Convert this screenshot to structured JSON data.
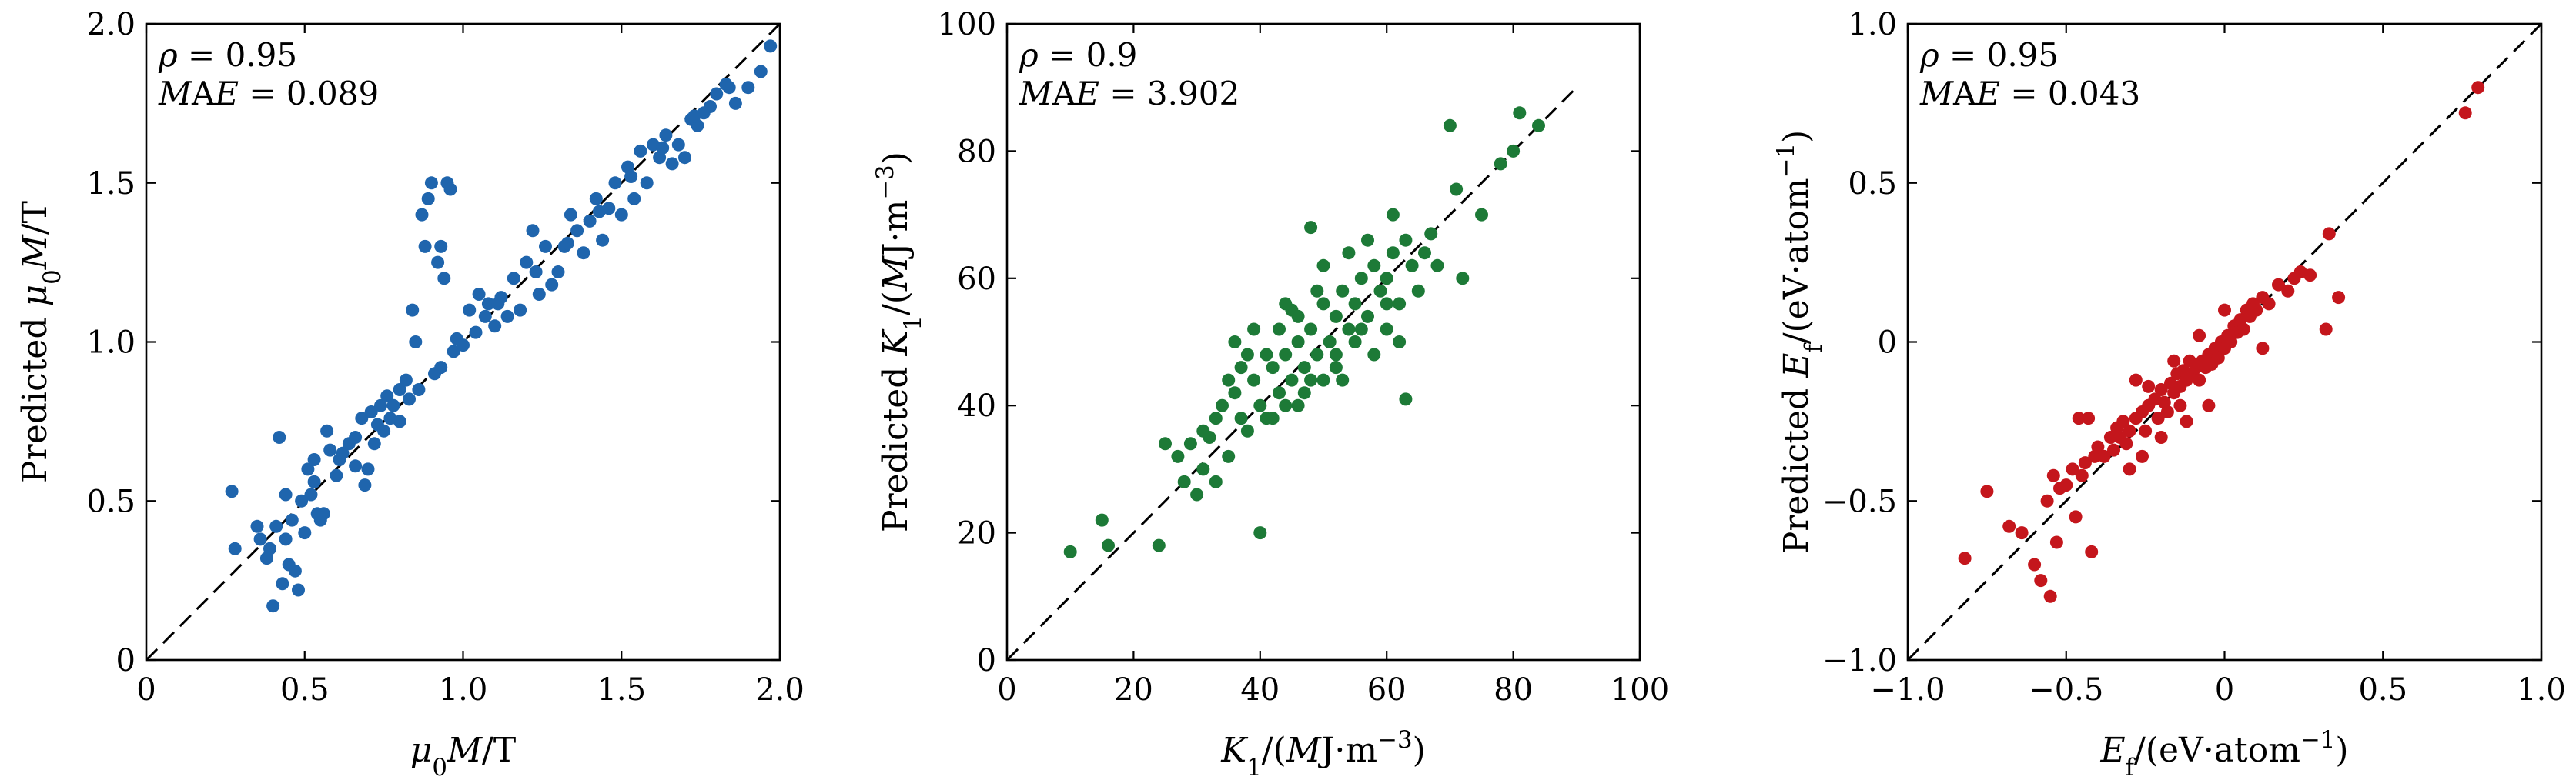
{
  "chart_data": [
    {
      "type": "scatter",
      "color": "#1f65ad",
      "xlim": [
        0,
        2.0
      ],
      "ylim": [
        0,
        2.0
      ],
      "xticks": [
        0,
        0.5,
        1.0,
        1.5,
        2.0
      ],
      "xtick_labels": [
        "0",
        "0.5",
        "1.0",
        "1.5",
        "2.0"
      ],
      "yticks": [
        0,
        0.5,
        1.0,
        1.5,
        2.0
      ],
      "ytick_labels": [
        "0",
        "0.5",
        "1.0",
        "1.5",
        "2.0"
      ],
      "xlabel": "μ₀M/T",
      "ylabel": "Predicted μ₀M/T",
      "stats": [
        "ρ = 0.95",
        "MAE = 0.089"
      ],
      "diagonal": [
        0,
        2.0
      ],
      "points": [
        [
          0.27,
          0.53
        ],
        [
          0.28,
          0.35
        ],
        [
          0.36,
          0.38
        ],
        [
          0.38,
          0.32
        ],
        [
          0.4,
          0.17
        ],
        [
          0.41,
          0.42
        ],
        [
          0.42,
          0.7
        ],
        [
          0.43,
          0.24
        ],
        [
          0.44,
          0.38
        ],
        [
          0.45,
          0.3
        ],
        [
          0.46,
          0.44
        ],
        [
          0.47,
          0.28
        ],
        [
          0.48,
          0.22
        ],
        [
          0.49,
          0.5
        ],
        [
          0.5,
          0.4
        ],
        [
          0.51,
          0.6
        ],
        [
          0.52,
          0.52
        ],
        [
          0.53,
          0.63
        ],
        [
          0.54,
          0.46
        ],
        [
          0.55,
          0.44
        ],
        [
          0.56,
          0.46
        ],
        [
          0.57,
          0.72
        ],
        [
          0.58,
          0.66
        ],
        [
          0.6,
          0.58
        ],
        [
          0.62,
          0.65
        ],
        [
          0.64,
          0.68
        ],
        [
          0.66,
          0.7
        ],
        [
          0.68,
          0.76
        ],
        [
          0.69,
          0.55
        ],
        [
          0.7,
          0.6
        ],
        [
          0.71,
          0.78
        ],
        [
          0.72,
          0.68
        ],
        [
          0.74,
          0.8
        ],
        [
          0.75,
          0.72
        ],
        [
          0.76,
          0.83
        ],
        [
          0.78,
          0.8
        ],
        [
          0.8,
          0.75
        ],
        [
          0.8,
          0.85
        ],
        [
          0.82,
          0.88
        ],
        [
          0.84,
          1.1
        ],
        [
          0.85,
          1.0
        ],
        [
          0.86,
          0.85
        ],
        [
          0.87,
          1.4
        ],
        [
          0.88,
          1.3
        ],
        [
          0.89,
          1.45
        ],
        [
          0.9,
          1.5
        ],
        [
          0.91,
          0.9
        ],
        [
          0.92,
          1.25
        ],
        [
          0.93,
          1.3
        ],
        [
          0.94,
          1.2
        ],
        [
          0.95,
          1.5
        ],
        [
          0.96,
          1.48
        ],
        [
          0.97,
          0.97
        ],
        [
          0.98,
          1.01
        ],
        [
          1.0,
          0.99
        ],
        [
          1.02,
          1.1
        ],
        [
          1.05,
          1.15
        ],
        [
          1.07,
          1.08
        ],
        [
          1.08,
          1.12
        ],
        [
          1.1,
          1.05
        ],
        [
          1.12,
          1.14
        ],
        [
          1.14,
          1.08
        ],
        [
          1.16,
          1.2
        ],
        [
          1.18,
          1.1
        ],
        [
          1.2,
          1.25
        ],
        [
          1.22,
          1.35
        ],
        [
          1.24,
          1.15
        ],
        [
          1.26,
          1.3
        ],
        [
          1.28,
          1.18
        ],
        [
          1.3,
          1.22
        ],
        [
          1.32,
          1.3
        ],
        [
          1.34,
          1.4
        ],
        [
          1.36,
          1.35
        ],
        [
          1.38,
          1.28
        ],
        [
          1.4,
          1.38
        ],
        [
          1.42,
          1.45
        ],
        [
          1.44,
          1.32
        ],
        [
          1.46,
          1.42
        ],
        [
          1.48,
          1.5
        ],
        [
          1.5,
          1.4
        ],
        [
          1.52,
          1.55
        ],
        [
          1.54,
          1.45
        ],
        [
          1.56,
          1.6
        ],
        [
          1.58,
          1.5
        ],
        [
          1.6,
          1.62
        ],
        [
          1.62,
          1.58
        ],
        [
          1.64,
          1.65
        ],
        [
          1.66,
          1.56
        ],
        [
          1.68,
          1.62
        ],
        [
          1.7,
          1.58
        ],
        [
          1.72,
          1.7
        ],
        [
          1.74,
          1.68
        ],
        [
          1.76,
          1.72
        ],
        [
          1.78,
          1.74
        ],
        [
          1.8,
          1.78
        ],
        [
          1.84,
          1.8
        ],
        [
          1.86,
          1.75
        ],
        [
          1.9,
          1.8
        ],
        [
          1.94,
          1.85
        ],
        [
          1.97,
          1.93
        ],
        [
          0.35,
          0.42
        ],
        [
          0.39,
          0.35
        ],
        [
          0.44,
          0.52
        ],
        [
          0.53,
          0.56
        ],
        [
          0.61,
          0.63
        ],
        [
          0.66,
          0.61
        ],
        [
          0.73,
          0.74
        ],
        [
          0.77,
          0.76
        ],
        [
          0.83,
          0.82
        ],
        [
          0.93,
          0.92
        ],
        [
          1.04,
          1.03
        ],
        [
          1.11,
          1.12
        ],
        [
          1.23,
          1.22
        ],
        [
          1.33,
          1.31
        ],
        [
          1.43,
          1.41
        ],
        [
          1.53,
          1.52
        ],
        [
          1.63,
          1.61
        ],
        [
          1.73,
          1.71
        ],
        [
          1.83,
          1.81
        ]
      ]
    },
    {
      "type": "scatter",
      "color": "#1d7a37",
      "xlim": [
        0,
        100
      ],
      "ylim": [
        0,
        100
      ],
      "xticks": [
        0,
        20,
        40,
        60,
        80,
        100
      ],
      "xtick_labels": [
        "0",
        "20",
        "40",
        "60",
        "80",
        "100"
      ],
      "yticks": [
        0,
        20,
        40,
        60,
        80,
        100
      ],
      "ytick_labels": [
        "0",
        "20",
        "40",
        "60",
        "80",
        "100"
      ],
      "xlabel": "K₁/(MJ·m⁻³)",
      "ylabel": "Predicted K₁/(MJ·m⁻³)",
      "stats": [
        "ρ = 0.9",
        "MAE = 3.902"
      ],
      "diagonal": [
        0,
        90
      ],
      "points": [
        [
          10,
          17
        ],
        [
          15,
          22
        ],
        [
          16,
          18
        ],
        [
          24,
          18
        ],
        [
          25,
          34
        ],
        [
          27,
          32
        ],
        [
          28,
          28
        ],
        [
          29,
          34
        ],
        [
          30,
          26
        ],
        [
          31,
          30
        ],
        [
          32,
          35
        ],
        [
          33,
          28
        ],
        [
          34,
          40
        ],
        [
          35,
          32
        ],
        [
          36,
          42
        ],
        [
          37,
          38
        ],
        [
          38,
          36
        ],
        [
          39,
          44
        ],
        [
          40,
          20
        ],
        [
          40,
          40
        ],
        [
          41,
          38
        ],
        [
          42,
          46
        ],
        [
          43,
          42
        ],
        [
          43,
          52
        ],
        [
          44,
          48
        ],
        [
          45,
          44
        ],
        [
          45,
          55
        ],
        [
          46,
          50
        ],
        [
          47,
          46
        ],
        [
          47,
          42
        ],
        [
          48,
          52
        ],
        [
          48,
          68
        ],
        [
          49,
          48
        ],
        [
          50,
          56
        ],
        [
          50,
          44
        ],
        [
          51,
          50
        ],
        [
          52,
          54
        ],
        [
          52,
          46
        ],
        [
          53,
          58
        ],
        [
          54,
          52
        ],
        [
          55,
          56
        ],
        [
          55,
          50
        ],
        [
          56,
          60
        ],
        [
          57,
          54
        ],
        [
          58,
          62
        ],
        [
          59,
          58
        ],
        [
          60,
          60
        ],
        [
          60,
          52
        ],
        [
          61,
          64
        ],
        [
          62,
          56
        ],
        [
          63,
          41
        ],
        [
          63,
          66
        ],
        [
          64,
          62
        ],
        [
          65,
          58
        ],
        [
          66,
          64
        ],
        [
          67,
          67
        ],
        [
          68,
          62
        ],
        [
          70,
          84
        ],
        [
          71,
          74
        ],
        [
          72,
          60
        ],
        [
          75,
          70
        ],
        [
          78,
          78
        ],
        [
          80,
          80
        ],
        [
          81,
          86
        ],
        [
          84,
          84
        ],
        [
          36,
          50
        ],
        [
          38,
          48
        ],
        [
          42,
          38
        ],
        [
          44,
          56
        ],
        [
          46,
          40
        ],
        [
          48,
          44
        ],
        [
          50,
          62
        ],
        [
          52,
          48
        ],
        [
          54,
          64
        ],
        [
          56,
          52
        ],
        [
          58,
          48
        ],
        [
          60,
          56
        ],
        [
          62,
          50
        ],
        [
          46,
          54
        ],
        [
          49,
          58
        ],
        [
          53,
          44
        ],
        [
          57,
          66
        ],
        [
          61,
          70
        ],
        [
          44,
          40
        ],
        [
          41,
          48
        ],
        [
          39,
          52
        ],
        [
          37,
          46
        ],
        [
          35,
          44
        ],
        [
          33,
          38
        ],
        [
          31,
          36
        ]
      ]
    },
    {
      "type": "scatter",
      "color": "#c4161c",
      "xlim": [
        -1.0,
        1.0
      ],
      "ylim": [
        -1.0,
        1.0
      ],
      "xticks": [
        -1.0,
        -0.5,
        0,
        0.5,
        1.0
      ],
      "xtick_labels": [
        "−1.0",
        "−0.5",
        "0",
        "0.5",
        "1.0"
      ],
      "yticks": [
        -1.0,
        -0.5,
        0,
        0.5,
        1.0
      ],
      "ytick_labels": [
        "−1.0",
        "−0.5",
        "0",
        "0.5",
        "1.0"
      ],
      "xlabel": "E_f/(eV·atom⁻¹)",
      "ylabel": "Predicted E_f/(eV·atom⁻¹)",
      "stats": [
        "ρ = 0.95",
        "MAE = 0.043"
      ],
      "diagonal": [
        -1.0,
        1.0
      ],
      "points": [
        [
          -0.82,
          -0.68
        ],
        [
          -0.75,
          -0.47
        ],
        [
          -0.68,
          -0.58
        ],
        [
          -0.64,
          -0.6
        ],
        [
          -0.6,
          -0.7
        ],
        [
          -0.58,
          -0.75
        ],
        [
          -0.56,
          -0.5
        ],
        [
          -0.55,
          -0.8
        ],
        [
          -0.54,
          -0.42
        ],
        [
          -0.53,
          -0.63
        ],
        [
          -0.52,
          -0.46
        ],
        [
          -0.5,
          -0.45
        ],
        [
          -0.48,
          -0.4
        ],
        [
          -0.47,
          -0.55
        ],
        [
          -0.46,
          -0.24
        ],
        [
          -0.45,
          -0.42
        ],
        [
          -0.44,
          -0.38
        ],
        [
          -0.43,
          -0.24
        ],
        [
          -0.42,
          -0.66
        ],
        [
          -0.41,
          -0.36
        ],
        [
          -0.4,
          -0.33
        ],
        [
          -0.38,
          -0.36
        ],
        [
          -0.36,
          -0.3
        ],
        [
          -0.35,
          -0.34
        ],
        [
          -0.34,
          -0.27
        ],
        [
          -0.33,
          -0.3
        ],
        [
          -0.32,
          -0.25
        ],
        [
          -0.31,
          -0.32
        ],
        [
          -0.3,
          -0.28
        ],
        [
          -0.28,
          -0.24
        ],
        [
          -0.26,
          -0.22
        ],
        [
          -0.25,
          -0.28
        ],
        [
          -0.24,
          -0.2
        ],
        [
          -0.22,
          -0.18
        ],
        [
          -0.21,
          -0.24
        ],
        [
          -0.2,
          -0.15
        ],
        [
          -0.19,
          -0.19
        ],
        [
          -0.18,
          -0.22
        ],
        [
          -0.17,
          -0.13
        ],
        [
          -0.16,
          -0.16
        ],
        [
          -0.15,
          -0.1
        ],
        [
          -0.14,
          -0.14
        ],
        [
          -0.13,
          -0.09
        ],
        [
          -0.12,
          -0.12
        ],
        [
          -0.11,
          -0.06
        ],
        [
          -0.1,
          -0.1
        ],
        [
          -0.09,
          -0.08
        ],
        [
          -0.08,
          -0.12
        ],
        [
          -0.07,
          -0.06
        ],
        [
          -0.06,
          -0.08
        ],
        [
          -0.05,
          -0.04
        ],
        [
          -0.04,
          -0.07
        ],
        [
          -0.03,
          -0.02
        ],
        [
          -0.02,
          -0.05
        ],
        [
          -0.01,
          0.0
        ],
        [
          0.0,
          -0.02
        ],
        [
          0.01,
          0.02
        ],
        [
          0.02,
          0.0
        ],
        [
          0.03,
          0.05
        ],
        [
          0.04,
          0.03
        ],
        [
          0.05,
          0.07
        ],
        [
          0.06,
          0.04
        ],
        [
          0.07,
          0.1
        ],
        [
          0.08,
          0.08
        ],
        [
          0.09,
          0.12
        ],
        [
          0.1,
          0.1
        ],
        [
          0.12,
          0.14
        ],
        [
          0.14,
          0.12
        ],
        [
          0.17,
          0.18
        ],
        [
          0.2,
          0.16
        ],
        [
          0.22,
          0.2
        ],
        [
          0.24,
          0.22
        ],
        [
          0.27,
          0.21
        ],
        [
          0.32,
          0.04
        ],
        [
          0.33,
          0.34
        ],
        [
          0.36,
          0.14
        ],
        [
          0.76,
          0.72
        ],
        [
          0.8,
          0.8
        ],
        [
          -0.28,
          -0.12
        ],
        [
          -0.16,
          -0.06
        ],
        [
          -0.05,
          -0.2
        ],
        [
          0.12,
          -0.02
        ],
        [
          -0.26,
          -0.36
        ],
        [
          -0.12,
          -0.25
        ],
        [
          0.0,
          0.1
        ],
        [
          -0.08,
          0.02
        ],
        [
          -0.2,
          -0.3
        ],
        [
          -0.14,
          -0.2
        ],
        [
          -0.3,
          -0.4
        ],
        [
          -0.24,
          -0.14
        ]
      ]
    }
  ]
}
